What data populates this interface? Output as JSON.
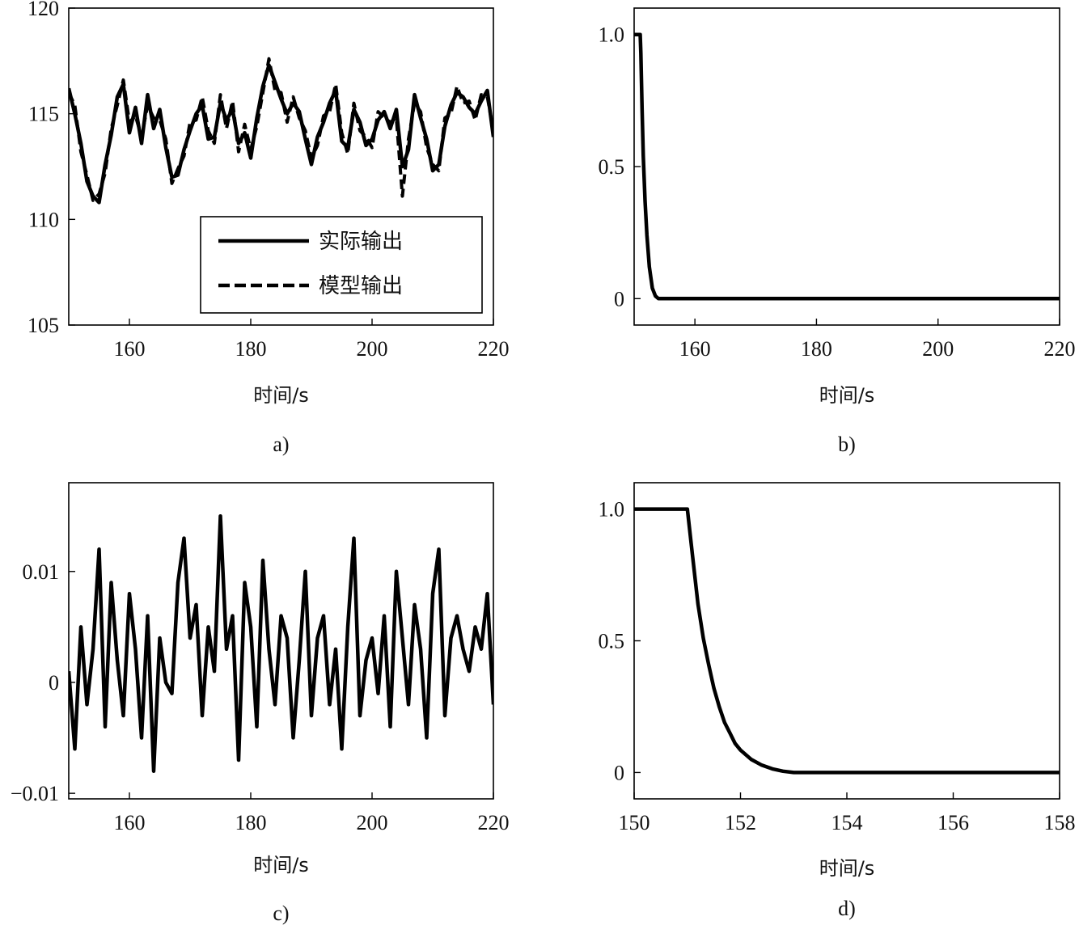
{
  "chart_data": [
    {
      "panel_label": "a)",
      "type": "line",
      "xlabel": "时间/s",
      "ylabel": "",
      "xlim": [
        150,
        220
      ],
      "ylim": [
        105,
        120
      ],
      "xticks": [
        160,
        180,
        200,
        220
      ],
      "yticks": [
        105,
        110,
        115,
        120
      ],
      "legend": {
        "placement": "lower-right",
        "entries": [
          "实际输出",
          "模型输出"
        ]
      },
      "series": [
        {
          "name": "实际输出",
          "style": "solid",
          "x": [
            150,
            151,
            152,
            153,
            154,
            155,
            156,
            157,
            158,
            159,
            160,
            161,
            162,
            163,
            164,
            165,
            166,
            167,
            168,
            169,
            170,
            171,
            172,
            173,
            174,
            175,
            176,
            177,
            178,
            179,
            180,
            181,
            182,
            183,
            184,
            185,
            186,
            187,
            188,
            189,
            190,
            191,
            192,
            193,
            194,
            195,
            196,
            197,
            198,
            199,
            200,
            201,
            202,
            203,
            204,
            205,
            206,
            207,
            208,
            209,
            210,
            211,
            212,
            213,
            214,
            215,
            216,
            217,
            218,
            219,
            220
          ],
          "y": [
            116.2,
            115.0,
            113.6,
            111.8,
            111.1,
            110.8,
            112.6,
            114.0,
            115.8,
            116.4,
            114.1,
            115.3,
            113.6,
            115.9,
            114.3,
            115.2,
            113.4,
            112.0,
            112.1,
            113.3,
            114.2,
            115.0,
            115.4,
            113.8,
            113.9,
            115.5,
            114.7,
            115.2,
            113.6,
            114.1,
            112.9,
            114.8,
            116.3,
            117.3,
            116.5,
            115.7,
            115.0,
            115.5,
            115.1,
            113.8,
            112.6,
            113.9,
            114.6,
            115.5,
            116.1,
            113.7,
            113.4,
            115.2,
            114.6,
            113.5,
            113.8,
            114.7,
            115.1,
            114.3,
            115.2,
            112.5,
            113.3,
            115.9,
            114.8,
            113.8,
            112.3,
            112.6,
            114.4,
            115.4,
            116.0,
            115.8,
            115.3,
            115.0,
            115.6,
            116.1,
            113.9
          ]
        },
        {
          "name": "模型输出",
          "style": "dashed",
          "x": [
            150,
            151,
            152,
            153,
            154,
            155,
            156,
            157,
            158,
            159,
            160,
            161,
            162,
            163,
            164,
            165,
            166,
            167,
            168,
            169,
            170,
            171,
            172,
            173,
            174,
            175,
            176,
            177,
            178,
            179,
            180,
            181,
            182,
            183,
            184,
            185,
            186,
            187,
            188,
            189,
            190,
            191,
            192,
            193,
            194,
            195,
            196,
            197,
            198,
            199,
            200,
            201,
            202,
            203,
            204,
            205,
            206,
            207,
            208,
            209,
            210,
            211,
            212,
            213,
            214,
            215,
            216,
            217,
            218,
            219,
            220
          ],
          "y": [
            116.0,
            115.4,
            113.2,
            112.1,
            110.9,
            111.2,
            112.2,
            114.3,
            115.4,
            116.6,
            114.6,
            114.9,
            113.9,
            115.4,
            114.8,
            114.7,
            113.8,
            111.7,
            112.4,
            113.0,
            114.6,
            114.7,
            115.8,
            114.2,
            113.6,
            115.9,
            114.3,
            115.6,
            113.2,
            114.5,
            113.3,
            114.4,
            116.0,
            117.6,
            116.1,
            116.0,
            114.6,
            115.8,
            114.8,
            114.2,
            112.9,
            113.5,
            114.9,
            115.1,
            116.4,
            114.1,
            113.1,
            115.5,
            114.2,
            113.9,
            113.4,
            115.1,
            114.8,
            114.6,
            114.8,
            111.1,
            113.8,
            115.5,
            115.1,
            113.4,
            112.6,
            112.3,
            114.8,
            115.0,
            116.3,
            115.5,
            115.6,
            114.7,
            115.9,
            115.8,
            114.2
          ]
        }
      ]
    },
    {
      "panel_label": "b)",
      "type": "line",
      "xlabel": "时间/s",
      "ylabel": "",
      "xlim": [
        150,
        220
      ],
      "ylim": [
        -0.1,
        1.1
      ],
      "xticks": [
        160,
        180,
        200,
        220
      ],
      "yticks": [
        0,
        0.5,
        1.0
      ],
      "ytick_labels": [
        "0",
        "0.5",
        "1.0"
      ],
      "series": [
        {
          "x": [
            150,
            151,
            151.1,
            151.3,
            151.5,
            151.8,
            152.1,
            152.5,
            153,
            153.5,
            154,
            160,
            180,
            200,
            220
          ],
          "y": [
            1.0,
            1.0,
            0.93,
            0.72,
            0.54,
            0.37,
            0.24,
            0.12,
            0.04,
            0.01,
            0.0,
            0.0,
            0.0,
            0.0,
            0.0
          ]
        }
      ]
    },
    {
      "panel_label": "c)",
      "type": "line",
      "xlabel": "时间/s",
      "ylabel": "",
      "xlim": [
        150,
        220
      ],
      "ylim": [
        -0.0105,
        0.018
      ],
      "xticks": [
        160,
        180,
        200,
        220
      ],
      "yticks": [
        -0.01,
        0,
        0.01
      ],
      "ytick_labels": [
        "−0.01",
        "0",
        "0.01"
      ],
      "series": [
        {
          "x": [
            150,
            151,
            152,
            153,
            154,
            155,
            156,
            157,
            158,
            159,
            160,
            161,
            162,
            163,
            164,
            165,
            166,
            167,
            168,
            169,
            170,
            171,
            172,
            173,
            174,
            175,
            176,
            177,
            178,
            179,
            180,
            181,
            182,
            183,
            184,
            185,
            186,
            187,
            188,
            189,
            190,
            191,
            192,
            193,
            194,
            195,
            196,
            197,
            198,
            199,
            200,
            201,
            202,
            203,
            204,
            205,
            206,
            207,
            208,
            209,
            210,
            211,
            212,
            213,
            214,
            215,
            216,
            217,
            218,
            219,
            220
          ],
          "y": [
            0.001,
            -0.006,
            0.005,
            -0.002,
            0.003,
            0.012,
            -0.004,
            0.009,
            0.002,
            -0.003,
            0.008,
            0.003,
            -0.005,
            0.006,
            -0.008,
            0.004,
            0.0,
            -0.001,
            0.009,
            0.013,
            0.004,
            0.007,
            -0.003,
            0.005,
            0.001,
            0.015,
            0.003,
            0.006,
            -0.007,
            0.009,
            0.005,
            -0.004,
            0.011,
            0.003,
            -0.002,
            0.006,
            0.004,
            -0.005,
            0.002,
            0.01,
            -0.003,
            0.004,
            0.006,
            -0.002,
            0.003,
            -0.006,
            0.005,
            0.013,
            -0.003,
            0.002,
            0.004,
            -0.001,
            0.006,
            -0.004,
            0.01,
            0.004,
            -0.002,
            0.007,
            0.003,
            -0.005,
            0.008,
            0.012,
            -0.003,
            0.004,
            0.006,
            0.003,
            0.001,
            0.005,
            0.003,
            0.008,
            -0.002
          ]
        }
      ]
    },
    {
      "panel_label": "d)",
      "type": "line",
      "xlabel": "时间/s",
      "ylabel": "",
      "xlim": [
        150,
        158
      ],
      "ylim": [
        -0.1,
        1.1
      ],
      "xticks": [
        150,
        152,
        154,
        156,
        158
      ],
      "yticks": [
        0,
        0.5,
        1.0
      ],
      "ytick_labels": [
        "0",
        "0.5",
        "1.0"
      ],
      "series": [
        {
          "x": [
            150,
            151.0,
            151.1,
            151.2,
            151.3,
            151.4,
            151.5,
            151.6,
            151.7,
            151.8,
            151.9,
            152.0,
            152.2,
            152.4,
            152.6,
            152.8,
            153.0,
            154,
            156,
            158
          ],
          "y": [
            1.0,
            1.0,
            0.82,
            0.64,
            0.51,
            0.41,
            0.32,
            0.25,
            0.19,
            0.15,
            0.11,
            0.085,
            0.05,
            0.028,
            0.014,
            0.005,
            0.0,
            0.0,
            0.0,
            0.0
          ]
        }
      ]
    }
  ]
}
